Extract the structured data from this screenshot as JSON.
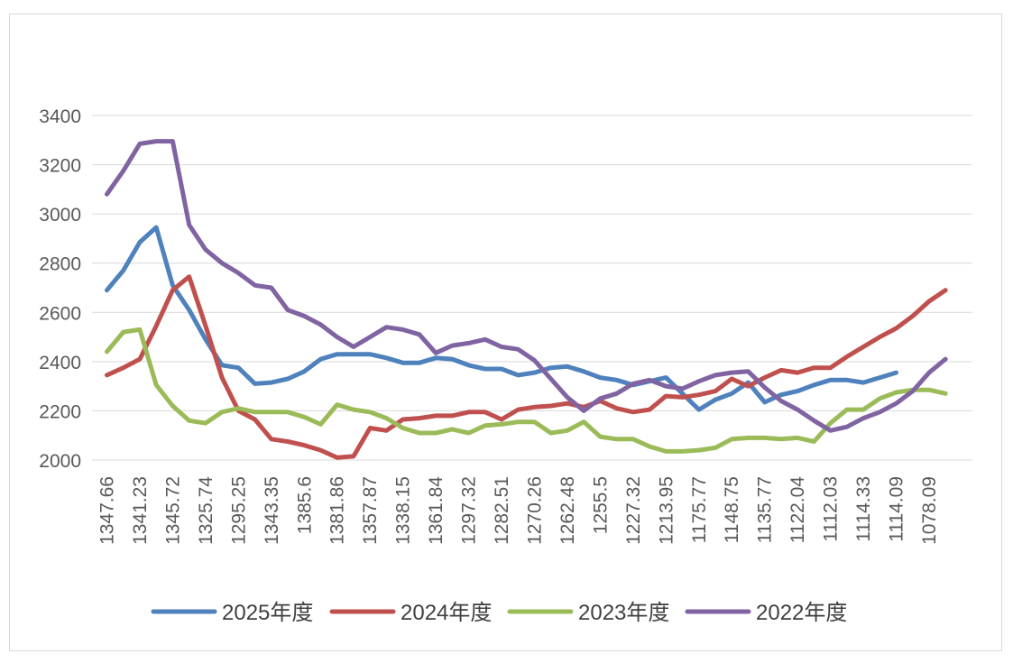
{
  "chart_data": {
    "type": "line",
    "title": "",
    "xlabel": "",
    "ylabel": "",
    "ylim": [
      2000,
      3400
    ],
    "yticks": [
      "2000",
      "2200",
      "2400",
      "2600",
      "2800",
      "3000",
      "3200",
      "3400"
    ],
    "grid": true,
    "legend_position": "bottom",
    "categories": [
      "1347.66",
      "",
      "1341.23",
      "",
      "1345.72",
      "",
      "1325.74",
      "",
      "1295.25",
      "",
      "1343.35",
      "",
      "1385.6",
      "",
      "1381.86",
      "",
      "1357.87",
      "",
      "1338.15",
      "",
      "1361.84",
      "",
      "1297.32",
      "",
      "1282.51",
      "",
      "1270.26",
      "",
      "1262.48",
      "",
      "1255.5",
      "",
      "1227.32",
      "",
      "1213.95",
      "",
      "1175.77",
      "",
      "1148.75",
      "",
      "1135.77",
      "",
      "1122.04",
      "",
      "1112.03",
      "",
      "1114.33",
      "",
      "1114.09",
      "",
      "1078.09",
      ""
    ],
    "series": [
      {
        "name": "2025年度",
        "color": "#4f81bd",
        "values": [
          2690,
          2770,
          2885,
          2945,
          2710,
          2610,
          2490,
          2385,
          2375,
          2310,
          2315,
          2330,
          2360,
          2410,
          2430,
          2430,
          2430,
          2415,
          2395,
          2395,
          2415,
          2410,
          2385,
          2370,
          2370,
          2345,
          2355,
          2375,
          2380,
          2360,
          2335,
          2325,
          2305,
          2320,
          2335,
          2270,
          2205,
          2245,
          2270,
          2315,
          2235,
          2265,
          2280,
          2305,
          2325,
          2325,
          2315,
          2335,
          2355,
          null,
          null,
          null
        ]
      },
      {
        "name": "2024年度",
        "color": "#c0504d",
        "values": [
          2345,
          2375,
          2410,
          2545,
          2690,
          2745,
          2545,
          2335,
          2200,
          2165,
          2085,
          2075,
          2060,
          2040,
          2010,
          2015,
          2130,
          2120,
          2165,
          2170,
          2180,
          2180,
          2195,
          2195,
          2165,
          2205,
          2215,
          2220,
          2230,
          2215,
          2240,
          2210,
          2195,
          2205,
          2260,
          2255,
          2265,
          2280,
          2330,
          2300,
          2335,
          2365,
          2355,
          2375,
          2375,
          2420,
          2460,
          2500,
          2535,
          2585,
          2645,
          2690
        ]
      },
      {
        "name": "2023年度",
        "color": "#9bbb59",
        "values": [
          2440,
          2520,
          2530,
          2305,
          2220,
          2160,
          2150,
          2195,
          2210,
          2195,
          2195,
          2195,
          2175,
          2145,
          2225,
          2205,
          2195,
          2170,
          2130,
          2110,
          2110,
          2125,
          2110,
          2140,
          2145,
          2155,
          2155,
          2110,
          2120,
          2155,
          2095,
          2085,
          2085,
          2055,
          2035,
          2035,
          2040,
          2050,
          2085,
          2090,
          2090,
          2085,
          2090,
          2075,
          2150,
          2205,
          2205,
          2250,
          2275,
          2285,
          2285,
          2270
        ]
      },
      {
        "name": "2022年度",
        "color": "#8064a2",
        "values": [
          3080,
          3175,
          3285,
          3295,
          3295,
          2955,
          2855,
          2800,
          2760,
          2710,
          2700,
          2610,
          2585,
          2550,
          2500,
          2460,
          2500,
          2540,
          2530,
          2510,
          2435,
          2465,
          2475,
          2490,
          2460,
          2450,
          2405,
          2330,
          2255,
          2200,
          2250,
          2270,
          2310,
          2325,
          2300,
          2290,
          2320,
          2345,
          2355,
          2360,
          2295,
          2240,
          2205,
          2160,
          2120,
          2135,
          2170,
          2195,
          2230,
          2280,
          2355,
          2410
        ]
      }
    ]
  }
}
